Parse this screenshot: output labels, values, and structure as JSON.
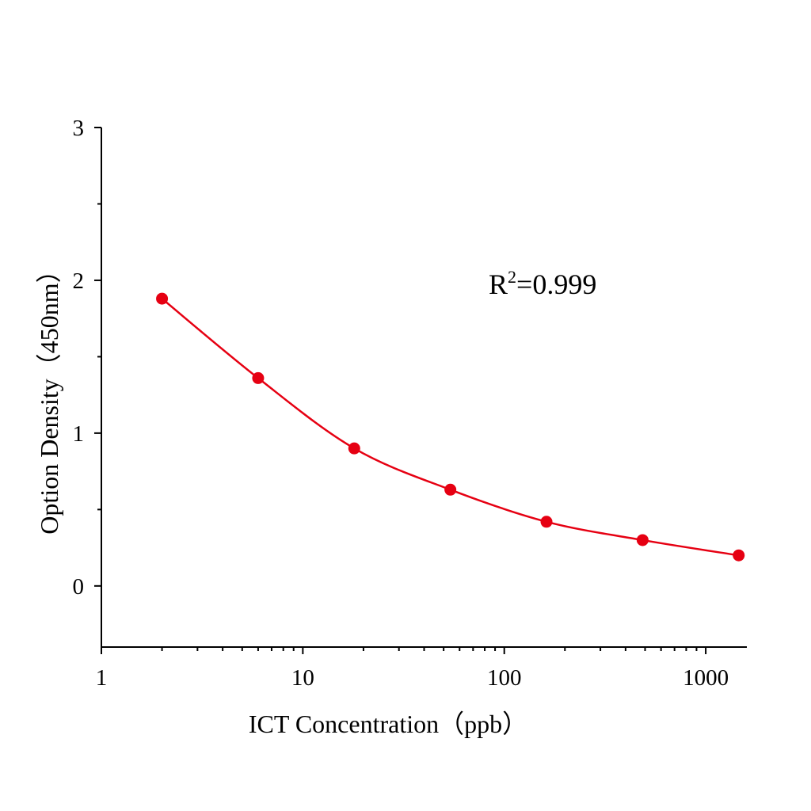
{
  "chart_data": {
    "type": "scatter",
    "xscale": "log",
    "xlim": [
      1,
      1600
    ],
    "ylim": [
      -0.4,
      3
    ],
    "xlabel": "ICT Concentration（ppb）",
    "ylabel": "Option Density（450nm）",
    "x_ticks": [
      {
        "value": 1,
        "label": "1"
      },
      {
        "value": 10,
        "label": "10"
      },
      {
        "value": 100,
        "label": "100"
      },
      {
        "value": 1000,
        "label": "1000"
      }
    ],
    "y_ticks": [
      {
        "value": 0,
        "label": "0"
      },
      {
        "value": 1,
        "label": "1"
      },
      {
        "value": 2,
        "label": "2"
      },
      {
        "value": 3,
        "label": "3"
      }
    ],
    "series": [
      {
        "points": [
          {
            "x": 2,
            "y": 1.88
          },
          {
            "x": 6,
            "y": 1.36
          },
          {
            "x": 18,
            "y": 0.9
          },
          {
            "x": 54,
            "y": 0.63
          },
          {
            "x": 162,
            "y": 0.42
          },
          {
            "x": 486,
            "y": 0.3
          },
          {
            "x": 1458,
            "y": 0.2
          }
        ],
        "fit": "smooth curve",
        "color": "#e60012"
      }
    ],
    "annotation": {
      "base": "R",
      "sup": "2",
      "rest": "=0.999"
    },
    "grid": false
  }
}
